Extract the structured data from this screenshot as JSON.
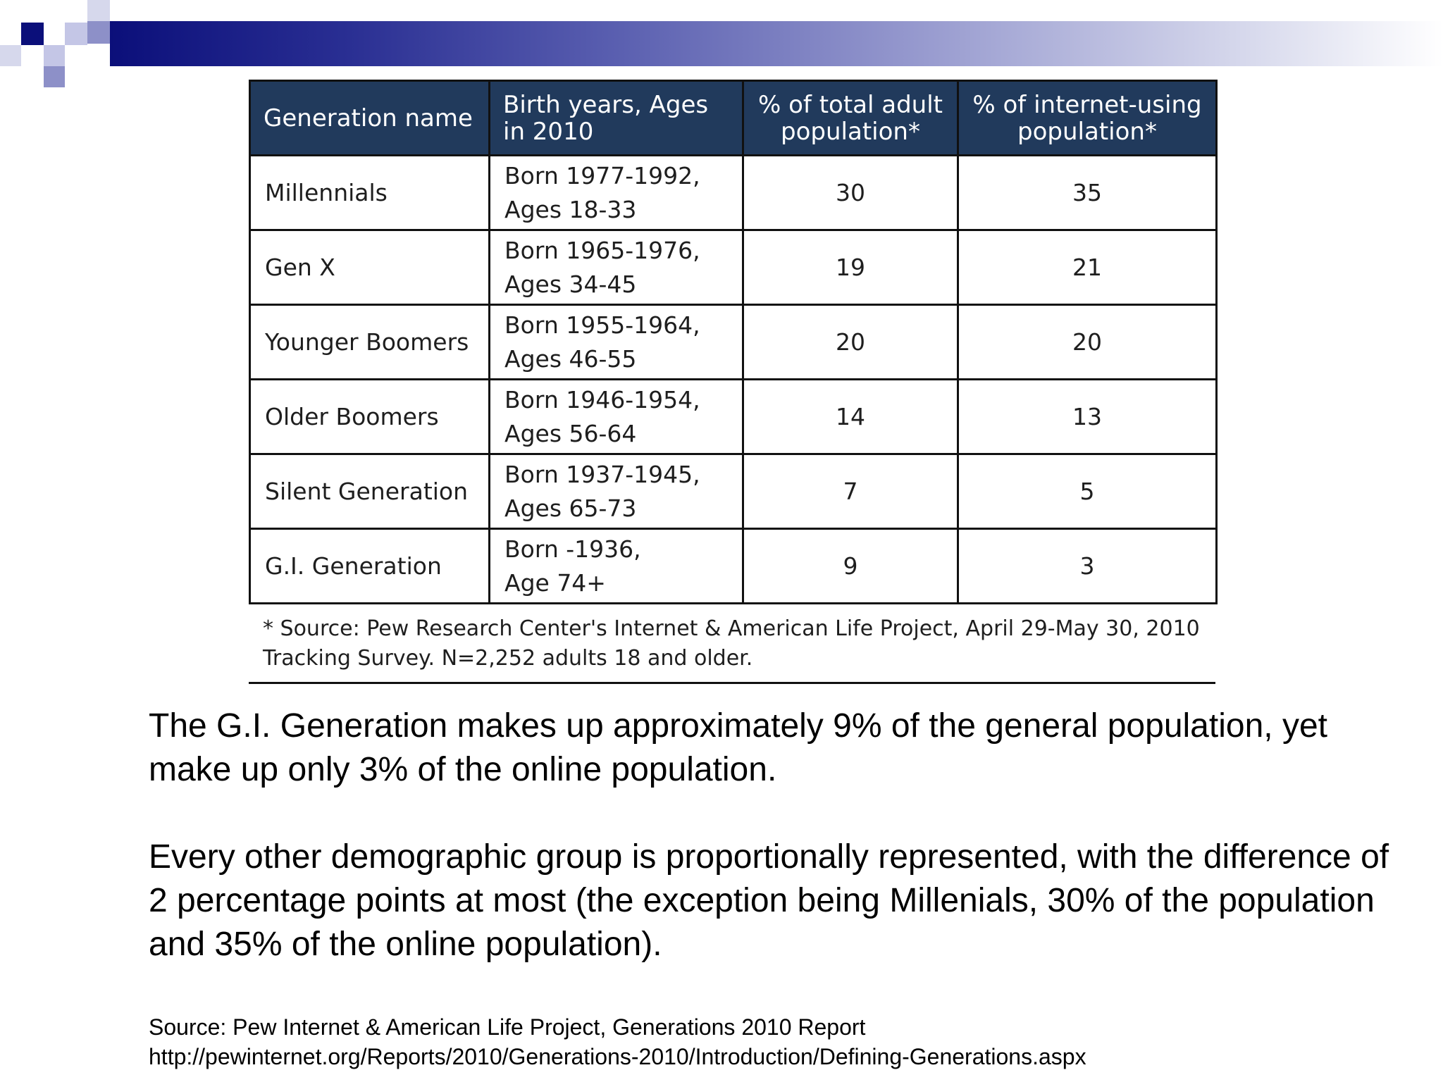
{
  "table": {
    "headers": [
      "Generation name",
      "Birth years, Ages in 2010",
      "% of total adult population*",
      "% of internet-using population*"
    ],
    "rows": [
      {
        "name": "Millennials",
        "born": "Born 1977-1992,",
        "ages": "Ages 18-33",
        "adult_pct": "30",
        "internet_pct": "35"
      },
      {
        "name": "Gen X",
        "born": "Born 1965-1976,",
        "ages": "Ages 34-45",
        "adult_pct": "19",
        "internet_pct": "21"
      },
      {
        "name": "Younger Boomers",
        "born": "Born 1955-1964,",
        "ages": "Ages 46-55",
        "adult_pct": "20",
        "internet_pct": "20"
      },
      {
        "name": "Older Boomers",
        "born": "Born 1946-1954,",
        "ages": "Ages 56-64",
        "adult_pct": "14",
        "internet_pct": "13"
      },
      {
        "name": "Silent Generation",
        "born": "Born 1937-1945,",
        "ages": "Ages 65-73",
        "adult_pct": "7",
        "internet_pct": "5"
      },
      {
        "name": "G.I. Generation",
        "born": "Born -1936,",
        "ages": "Age 74+",
        "adult_pct": "9",
        "internet_pct": "3"
      }
    ],
    "footnote": "* Source: Pew Research Center's Internet & American Life Project, April 29-May 30, 2010 Tracking Survey. N=2,252 adults 18 and older."
  },
  "body": {
    "para1": "The G.I. Generation makes up approximately 9% of the general population, yet make up only 3% of the online population.",
    "para2": "Every other demographic group is proportionally represented, with the difference of 2 percentage points at most (the exception being Millenials, 30% of the population and 35% of the online population)."
  },
  "source": {
    "line1": "Source: Pew Internet & American Life Project, Generations 2010 Report",
    "line2": "http://pewinternet.org/Reports/2010/Generations-2010/Introduction/Defining-Generations.aspx"
  },
  "colors": {
    "header_bg": "#213a5c",
    "brand_dark": "#0b0f7a"
  }
}
